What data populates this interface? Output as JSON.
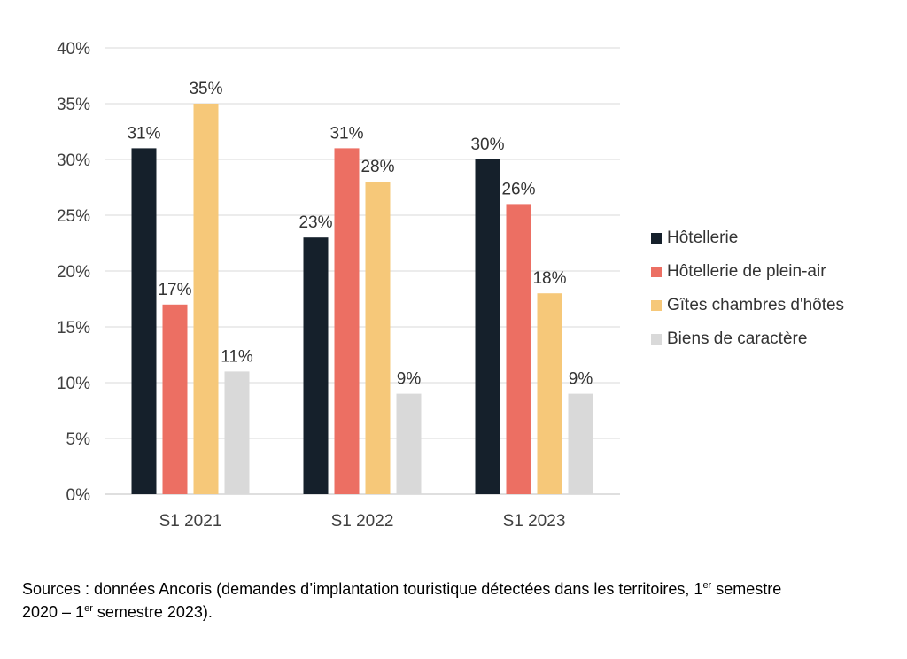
{
  "chart_data": {
    "type": "bar",
    "categories": [
      "S1 2021",
      "S1 2022",
      "S1 2023"
    ],
    "series": [
      {
        "name": "Hôtellerie",
        "color": "#15202b",
        "values": [
          31,
          23,
          30
        ]
      },
      {
        "name": "Hôtellerie de plein-air",
        "color": "#ec6f63",
        "values": [
          17,
          31,
          26
        ]
      },
      {
        "name": "Gîtes chambres d'hôtes",
        "color": "#f6c879",
        "values": [
          35,
          28,
          18
        ]
      },
      {
        "name": "Biens de caractère",
        "color": "#d9d9d9",
        "values": [
          11,
          9,
          9
        ]
      }
    ],
    "data_labels": [
      [
        "31%",
        "17%",
        "35%",
        "11%"
      ],
      [
        "23%",
        "31%",
        "28%",
        "9%"
      ],
      [
        "30%",
        "26%",
        "18%",
        "9%"
      ]
    ],
    "yticks": [
      "0%",
      "5%",
      "10%",
      "15%",
      "20%",
      "25%",
      "30%",
      "35%",
      "40%"
    ],
    "ylim": [
      0,
      40
    ],
    "grid": true,
    "legend_position": "right"
  },
  "source_note": {
    "part1": "Sources : données Ancoris (demandes d’implantation touristique détectées dans les territoires, 1",
    "sup1": "er",
    "part2": " semestre 2020 – 1",
    "sup2": "er",
    "part3": " semestre 2023)."
  }
}
